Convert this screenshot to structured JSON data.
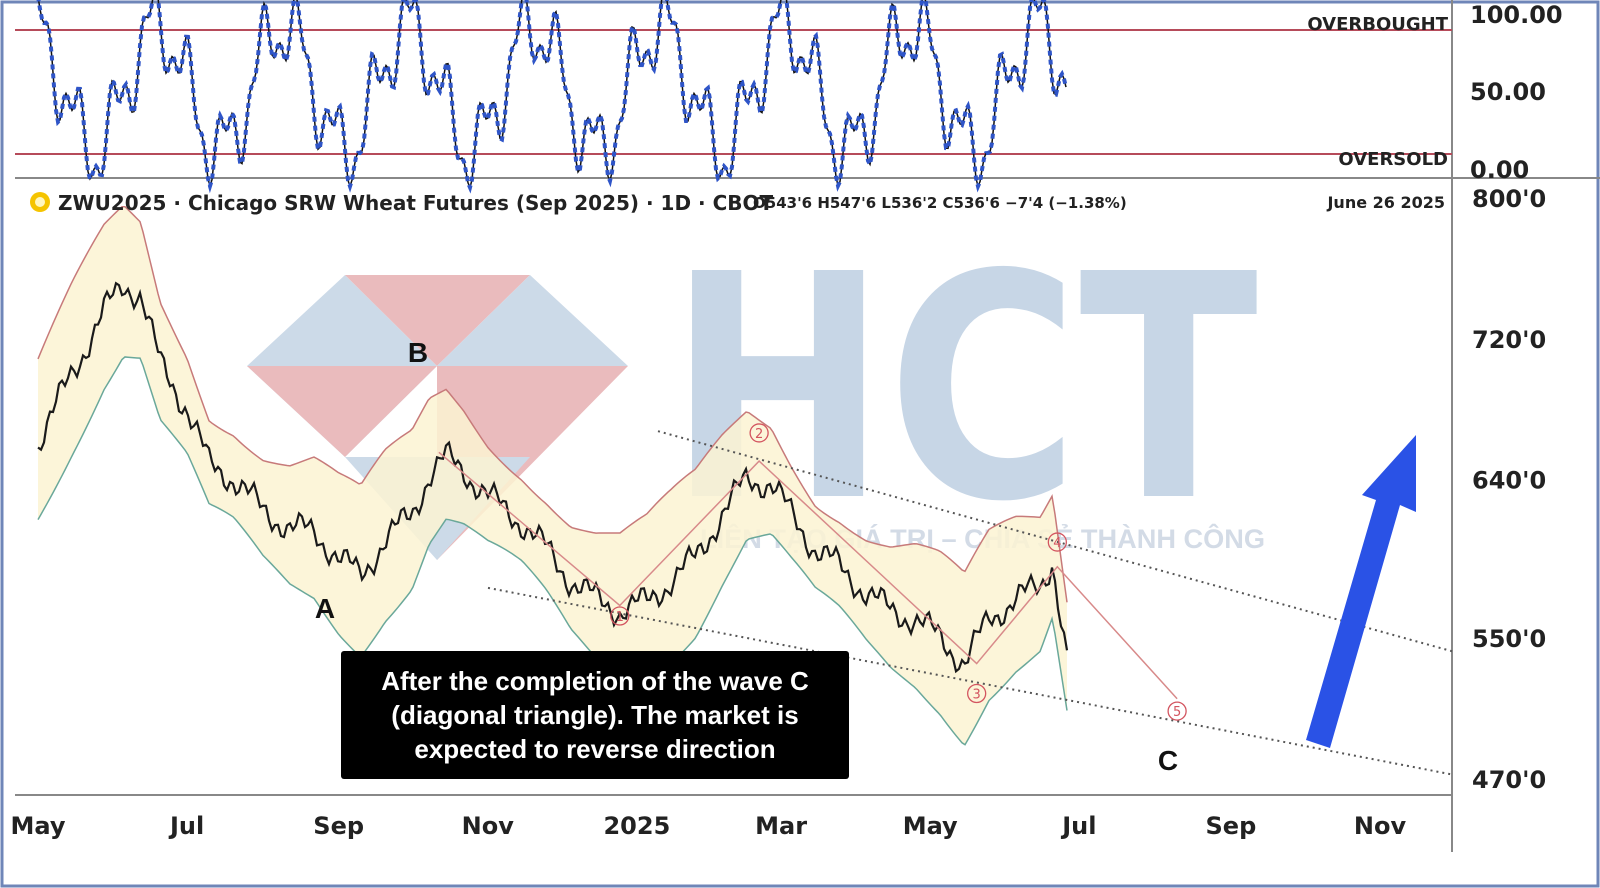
{
  "chart_data": {
    "type": "line",
    "title": "ZWU2025 · Chicago SRW Wheat Futures (Sep 2025) · 1D · CBOT",
    "ohlc": "O543'6  H547'6  L536'2  C536'6  −7'4 (−1.38%)",
    "date_label": "June 26 2025",
    "x_tick_labels": [
      "May",
      "Jul",
      "Sep",
      "Nov",
      "2025",
      "Mar",
      "May",
      "Jul",
      "Sep",
      "Nov"
    ],
    "price_axis": {
      "tick_labels": [
        "800'0",
        "720'0",
        "640'0",
        "550'0",
        "470'0"
      ],
      "ylim": [
        470,
        800
      ]
    },
    "oscillator": {
      "tick_labels": [
        "100.00",
        "50.00",
        "0.00"
      ],
      "overbought_label": "OVERBOUGHT",
      "oversold_label": "OVERSOLD",
      "ylim": [
        0,
        100
      ],
      "overbought_level": 80,
      "oversold_level": 20
    },
    "series": [
      {
        "values": [
          [
            "2024-05-01",
            660
          ],
          [
            "2024-05-15",
            700
          ],
          [
            "2024-05-28",
            735
          ],
          [
            "2024-06-05",
            750
          ],
          [
            "2024-06-12",
            745
          ],
          [
            "2024-06-20",
            705
          ],
          [
            "2024-07-01",
            680
          ],
          [
            "2024-07-10",
            648
          ],
          [
            "2024-07-20",
            640
          ],
          [
            "2024-08-01",
            622
          ],
          [
            "2024-08-12",
            612
          ],
          [
            "2024-08-22",
            610
          ],
          [
            "2024-09-01",
            595
          ],
          [
            "2024-09-10",
            585
          ],
          [
            "2024-09-20",
            605
          ],
          [
            "2024-10-01",
            620
          ],
          [
            "2024-10-08",
            642
          ],
          [
            "2024-10-15",
            652
          ],
          [
            "2024-10-22",
            645
          ],
          [
            "2024-11-01",
            630
          ],
          [
            "2024-11-15",
            615
          ],
          [
            "2024-11-25",
            600
          ],
          [
            "2024-12-05",
            582
          ],
          [
            "2024-12-15",
            572
          ],
          [
            "2024-12-25",
            565
          ],
          [
            "2025-01-05",
            570
          ],
          [
            "2025-01-15",
            582
          ],
          [
            "2025-01-25",
            595
          ],
          [
            "2025-02-05",
            620
          ],
          [
            "2025-02-15",
            640
          ],
          [
            "2025-02-25",
            637
          ],
          [
            "2025-03-05",
            620
          ],
          [
            "2025-03-15",
            600
          ],
          [
            "2025-03-25",
            590
          ],
          [
            "2025-04-05",
            575
          ],
          [
            "2025-04-15",
            565
          ],
          [
            "2025-04-25",
            560
          ],
          [
            "2025-05-05",
            550
          ],
          [
            "2025-05-15",
            535
          ],
          [
            "2025-05-25",
            560
          ],
          [
            "2025-06-05",
            572
          ],
          [
            "2025-06-15",
            578
          ],
          [
            "2025-06-20",
            594
          ],
          [
            "2025-06-26",
            537
          ]
        ]
      }
    ],
    "wave_labels": [
      "A",
      "B",
      "C"
    ],
    "wave_points": [
      "1",
      "2",
      "3",
      "4",
      "5"
    ],
    "annotation": "After the completion of the wave C (diagonal triangle). The market is expected to reverse direction",
    "legend": "none",
    "grid": false
  },
  "watermark": {
    "text": "HCT",
    "slogan": "LIÊN TẠO GIÁ TRỊ – CHIA SẺ THÀNH CÔNG"
  },
  "colors": {
    "price": "#1a1a1a",
    "band_fill": "#fbf3d2",
    "band_upper": "#c77a7a",
    "band_lower": "#6aa89a",
    "oscillator": "#2f55c8",
    "level_line": "#b64b5a",
    "arrow": "#2a52e6",
    "wave_marker": "#d35560",
    "logo_blue": "#c7d6e6",
    "logo_red": "#e8b4b6"
  }
}
